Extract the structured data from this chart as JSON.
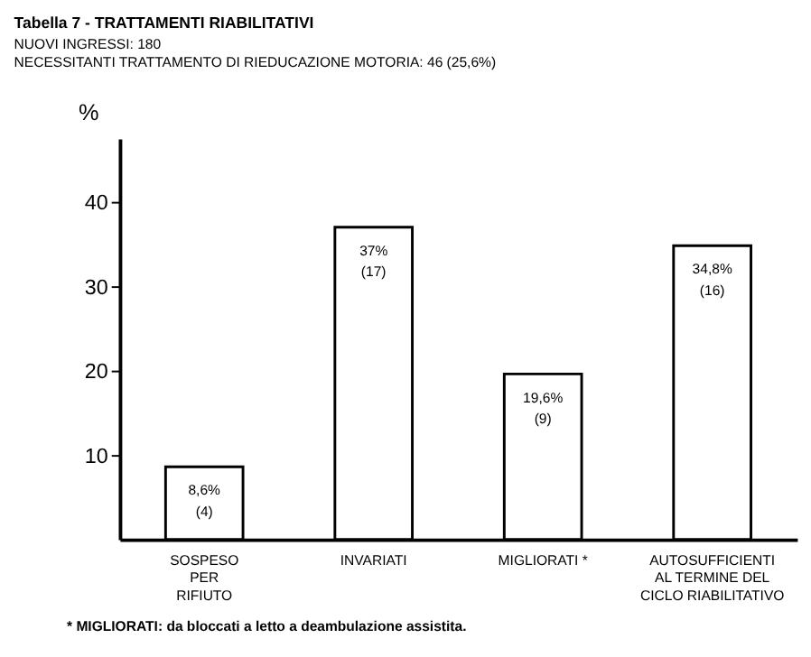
{
  "chart_data": {
    "type": "bar",
    "title": "Tabella 7 - TRATTAMENTI RIABILITATIVI",
    "subtitle": [
      "NUOVI INGRESSI: 180",
      "NECESSITANTI TRATTAMENTO DI RIEDUCAZIONE MOTORIA: 46 (25,6%)"
    ],
    "ylabel": "%",
    "categories": [
      "SOSPESO\nPER\nRIFIUTO",
      "INVARIATI",
      "MIGLIORATI *",
      "AUTOSUFFICIENTI\nAL TERMINE DEL\nCICLO RIABILITATIVO"
    ],
    "values": [
      8.6,
      37,
      19.6,
      34.8
    ],
    "value_labels": [
      "8,6%\n(4)",
      "37%\n(17)",
      "19,6%\n(9)",
      "34,8%\n(16)"
    ],
    "color": "#ffffff",
    "ylim": [
      0,
      47.5
    ],
    "yticks": [
      10,
      20,
      30,
      40
    ],
    "grid": false,
    "annotations": [
      "* MIGLIORATI: da bloccati a letto a deambulazione assistita."
    ]
  }
}
